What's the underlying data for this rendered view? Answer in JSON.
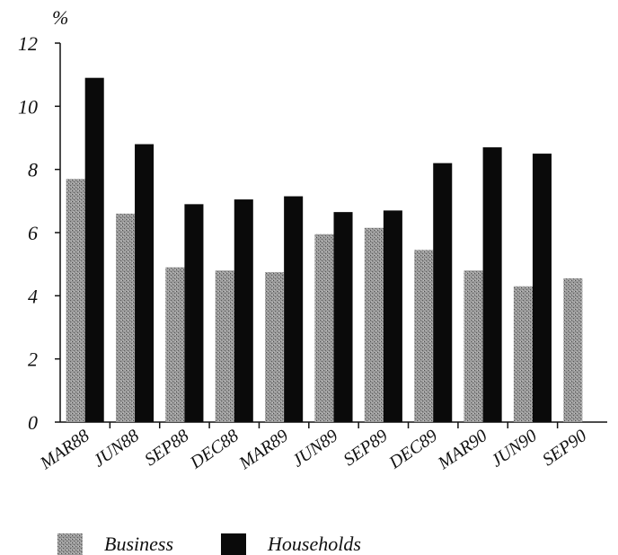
{
  "chart_data": {
    "type": "bar",
    "unit_label": "%",
    "categories": [
      "MAR88",
      "JUN88",
      "SEP88",
      "DEC88",
      "MAR89",
      "JUN89",
      "SEP89",
      "DEC89",
      "MAR90",
      "JUN90",
      "SEP90"
    ],
    "series": [
      {
        "name": "Business",
        "color": "#8a8a8a",
        "values": [
          7.7,
          6.6,
          4.9,
          4.8,
          4.75,
          5.95,
          6.15,
          5.45,
          4.8,
          4.3,
          4.55
        ]
      },
      {
        "name": "Households",
        "color": "#0a0a0a",
        "values": [
          10.9,
          8.8,
          6.9,
          7.05,
          7.15,
          6.65,
          6.7,
          8.2,
          8.7,
          8.5,
          null
        ]
      }
    ],
    "yticks": [
      "0",
      "2",
      "4",
      "6",
      "8",
      "10",
      "12"
    ],
    "ylim": [
      0,
      12
    ],
    "grid": false,
    "legend_position": "bottom-left"
  }
}
